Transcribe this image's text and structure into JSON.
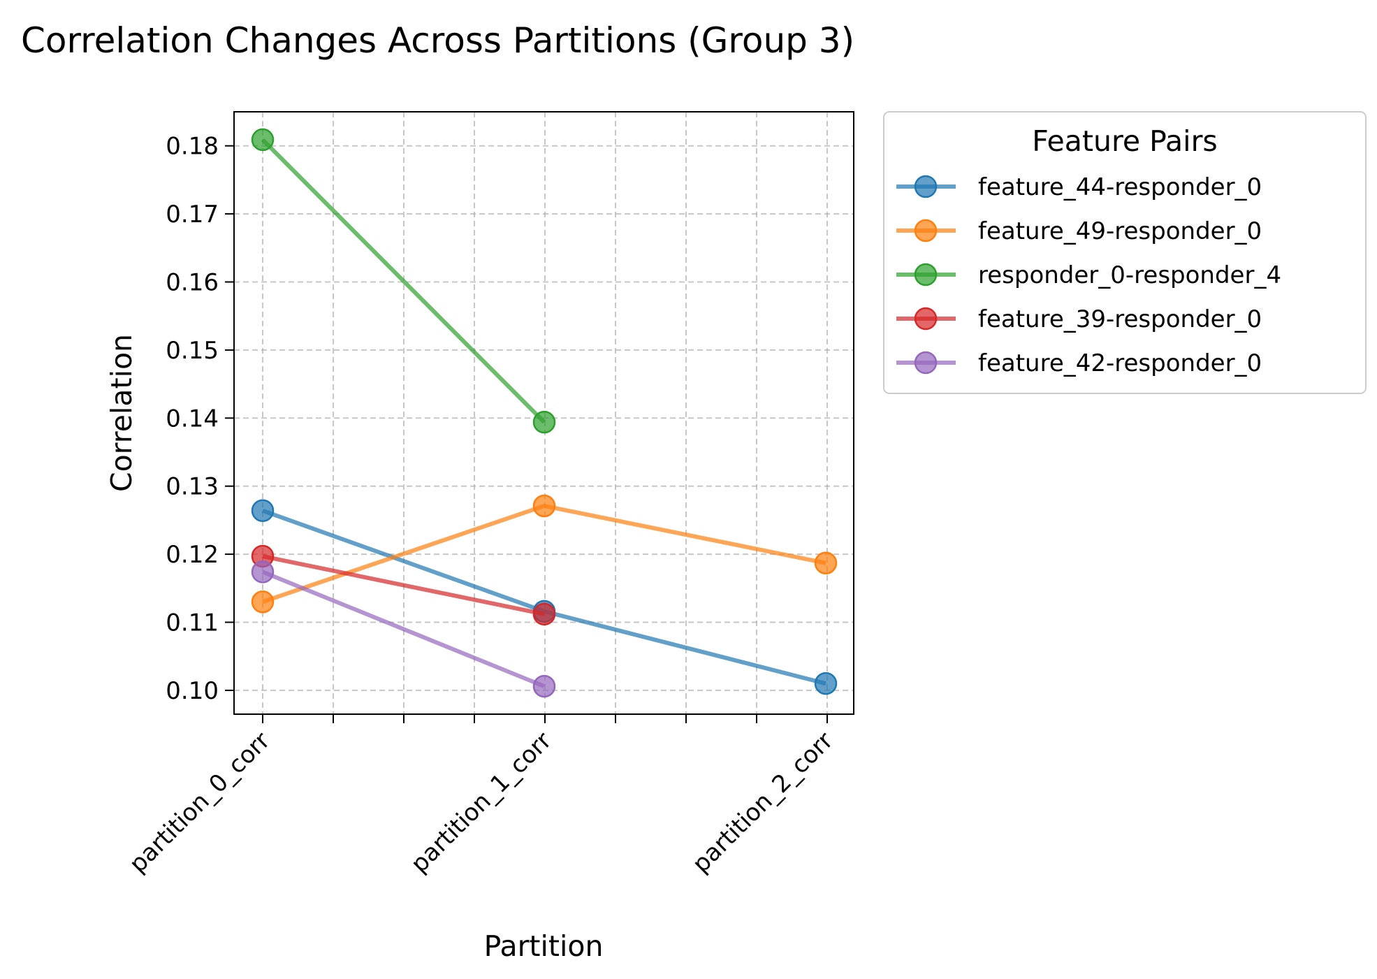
{
  "chart_data": {
    "type": "line",
    "title": "Correlation Changes Across Partitions (Group 3)",
    "xlabel": "Partition",
    "ylabel": "Correlation",
    "categories": [
      "partition_0_corr",
      "partition_1_corr",
      "partition_2_corr"
    ],
    "ylim": [
      0.0965,
      0.185
    ],
    "yticks": [
      "0.10",
      "0.11",
      "0.12",
      "0.13",
      "0.14",
      "0.15",
      "0.16",
      "0.17",
      "0.18"
    ],
    "grid": true,
    "legend": {
      "title": "Feature Pairs",
      "placement": "outside-top-right"
    },
    "series": [
      {
        "name": "feature_44-responder_0",
        "color": "#1f77b4",
        "values": [
          0.1264,
          0.1116,
          0.101
        ]
      },
      {
        "name": "feature_49-responder_0",
        "color": "#ff7f0e",
        "values": [
          0.113,
          0.1271,
          0.1187
        ]
      },
      {
        "name": "responder_0-responder_4",
        "color": "#2ca02c",
        "values": [
          0.1809,
          0.1394,
          null
        ]
      },
      {
        "name": "feature_39-responder_0",
        "color": "#d62728",
        "values": [
          0.1197,
          0.1112,
          null
        ]
      },
      {
        "name": "feature_42-responder_0",
        "color": "#9467bd",
        "values": [
          0.1174,
          0.1006,
          null
        ]
      }
    ]
  }
}
